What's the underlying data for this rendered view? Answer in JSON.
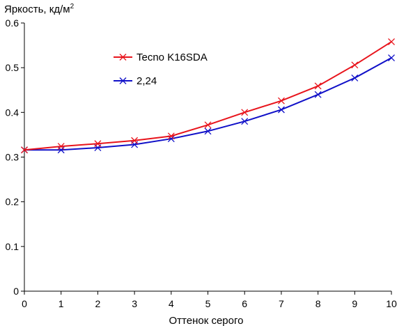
{
  "chart_data": {
    "type": "line",
    "xlabel": "Оттенок серого",
    "ylabel": "Яркость, кд/м",
    "ylabel_sup": "2",
    "xlim": [
      0,
      10
    ],
    "ylim": [
      0,
      0.6
    ],
    "xticks": [
      "0",
      "1",
      "2",
      "3",
      "4",
      "5",
      "6",
      "7",
      "8",
      "9",
      "10"
    ],
    "yticks": [
      "0",
      "0.1",
      "0.2",
      "0.3",
      "0.4",
      "0.5",
      "0.6"
    ],
    "grid": false,
    "legend_position": "top-left-inside",
    "x": [
      0,
      1,
      2,
      3,
      4,
      5,
      6,
      7,
      8,
      9,
      10
    ],
    "series": [
      {
        "name": "Tecno K16SDA",
        "color": "#e8141c",
        "values": [
          0.316,
          0.324,
          0.33,
          0.337,
          0.347,
          0.372,
          0.4,
          0.426,
          0.459,
          0.506,
          0.558
        ]
      },
      {
        "name": "2,24",
        "color": "#1010c8",
        "values": [
          0.316,
          0.316,
          0.321,
          0.328,
          0.341,
          0.358,
          0.38,
          0.406,
          0.44,
          0.477,
          0.522
        ]
      }
    ]
  }
}
